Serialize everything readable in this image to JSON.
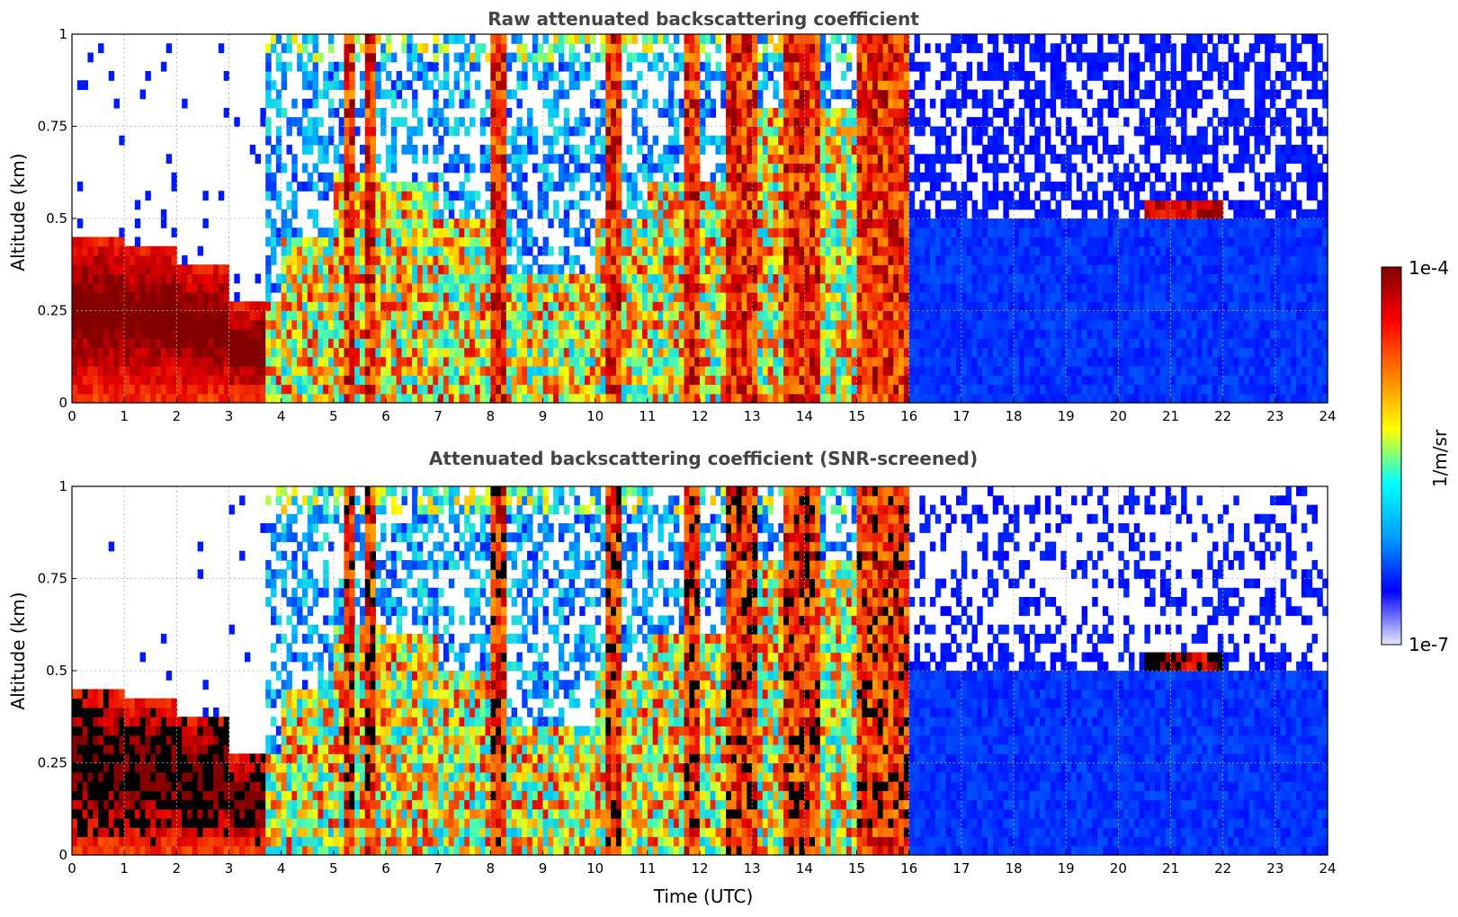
{
  "chart_data": [
    {
      "type": "heatmap",
      "title": "Raw attenuated backscattering coefficient",
      "xlabel": "",
      "ylabel": "Altitude (km)",
      "xlim": [
        0,
        24
      ],
      "ylim": [
        0,
        1
      ],
      "xticks": [
        "0",
        "1",
        "2",
        "3",
        "4",
        "5",
        "6",
        "7",
        "8",
        "9",
        "10",
        "11",
        "12",
        "13",
        "14",
        "15",
        "16",
        "17",
        "18",
        "19",
        "20",
        "21",
        "22",
        "23",
        "24"
      ],
      "yticks": [
        "0",
        "0.25",
        "0.5",
        "0.75",
        "1"
      ],
      "grid": true,
      "screened": false
    },
    {
      "type": "heatmap",
      "title": "Attenuated backscattering coefficient (SNR-screened)",
      "xlabel": "Time (UTC)",
      "ylabel": "Altitude (km)",
      "xlim": [
        0,
        24
      ],
      "ylim": [
        0,
        1
      ],
      "xticks": [
        "0",
        "1",
        "2",
        "3",
        "4",
        "5",
        "6",
        "7",
        "8",
        "9",
        "10",
        "11",
        "12",
        "13",
        "14",
        "15",
        "16",
        "17",
        "18",
        "19",
        "20",
        "21",
        "22",
        "23",
        "24"
      ],
      "yticks": [
        "0",
        "0.25",
        "0.5",
        "0.75",
        "1"
      ],
      "grid": true,
      "screened": true
    }
  ],
  "colorbar": {
    "label": "1/m/sr",
    "max_label": "1e-4",
    "min_label": "1e-7",
    "scale": "log",
    "colormap": "jet",
    "colors": [
      "#e8e8ff",
      "#0000ff",
      "#00a0ff",
      "#00ffff",
      "#ffff00",
      "#ff8000",
      "#ff0000",
      "#800000"
    ]
  }
}
